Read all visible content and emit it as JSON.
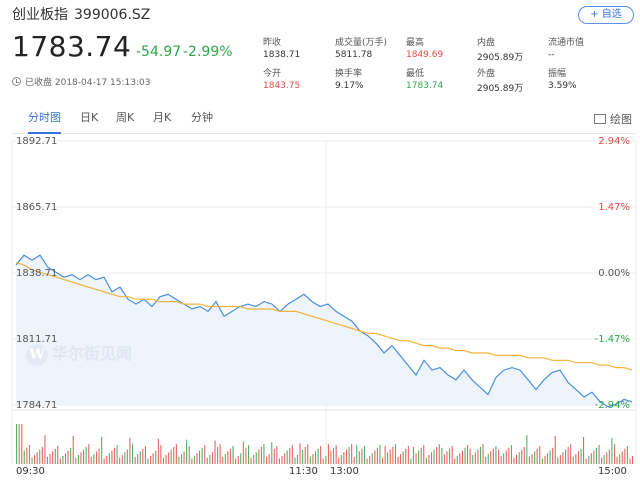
{
  "header": {
    "name": "创业板指",
    "code": "399006.SZ",
    "watch_button": "+ 自选",
    "price": "1783.74",
    "change": "-54.97",
    "change_pct": "-2.99%",
    "closed_status": "已收盘 2018-04-17 15:13:03"
  },
  "stats": [
    {
      "label": "昨收",
      "value": "1838.71",
      "tone": ""
    },
    {
      "label": "成交量(万手)",
      "value": "5811.78",
      "tone": ""
    },
    {
      "label": "最高",
      "value": "1849.69",
      "tone": "red"
    },
    {
      "label": "内盘",
      "value": "2905.89万",
      "tone": ""
    },
    {
      "label": "流通市值",
      "value": "--",
      "tone": ""
    },
    {
      "label": "今开",
      "value": "1843.75",
      "tone": "red"
    },
    {
      "label": "换手率",
      "value": "9.17%",
      "tone": ""
    },
    {
      "label": "最低",
      "value": "1783.74",
      "tone": "green"
    },
    {
      "label": "外盘",
      "value": "2905.89万",
      "tone": ""
    },
    {
      "label": "振幅",
      "value": "3.59%",
      "tone": ""
    }
  ],
  "tabs": [
    {
      "label": "分时图",
      "active": true
    },
    {
      "label": "日K",
      "active": false
    },
    {
      "label": "周K",
      "active": false
    },
    {
      "label": "月K",
      "active": false
    },
    {
      "label": "分钟",
      "active": false
    }
  ],
  "draw_button": "绘图",
  "watermark": "华尔街见闻",
  "colors": {
    "up": "#e24a4a",
    "down": "#2ba84a",
    "accent": "#3b74d9",
    "price_line": "#4a8fe0",
    "avg_line": "#f0b43c"
  },
  "chart_data": {
    "type": "line",
    "title": "",
    "prev_close": 1838.71,
    "y_ticks_left": [
      "1892.71",
      "1865.71",
      "1838.71",
      "1811.71",
      "1784.71"
    ],
    "y_ticks_right": [
      "2.94%",
      "1.47%",
      "0.00%",
      "-1.47%",
      "-2.94%"
    ],
    "x_ticks": [
      "09:30",
      "11:30",
      "13:00",
      "15:00"
    ],
    "ylim": [
      1784.71,
      1892.71
    ],
    "series": [
      {
        "name": "",
        "values": [
          1842,
          1846,
          1844,
          1846,
          1841,
          1839,
          1837,
          1838,
          1836,
          1838,
          1836,
          1837,
          1831,
          1833,
          1828,
          1826,
          1828,
          1825,
          1829,
          1830,
          1828,
          1826,
          1824,
          1825,
          1823,
          1827,
          1821,
          1823,
          1825,
          1826,
          1825,
          1827,
          1826,
          1823,
          1826,
          1828,
          1830,
          1827,
          1825,
          1826,
          1823,
          1821,
          1819,
          1815,
          1813,
          1810,
          1806,
          1809,
          1805,
          1801,
          1797,
          1803,
          1799,
          1800,
          1797,
          1795,
          1799,
          1795,
          1792,
          1789,
          1796,
          1799,
          1800,
          1799,
          1795,
          1791,
          1795,
          1798,
          1799,
          1794,
          1791,
          1788,
          1790,
          1786,
          1784,
          1785,
          1787,
          1786
        ]
      },
      {
        "name": "",
        "values": [
          1843,
          1842,
          1840,
          1839,
          1838,
          1837,
          1836,
          1835,
          1834,
          1833,
          1832,
          1831,
          1830,
          1829,
          1829,
          1828,
          1828,
          1828,
          1827,
          1827,
          1827,
          1826,
          1826,
          1826,
          1825,
          1825,
          1825,
          1825,
          1825,
          1824,
          1824,
          1824,
          1824,
          1823,
          1823,
          1823,
          1822,
          1821,
          1820,
          1819,
          1818,
          1817,
          1816,
          1815,
          1814,
          1814,
          1813,
          1812,
          1811,
          1811,
          1810,
          1809,
          1809,
          1808,
          1808,
          1807,
          1807,
          1806,
          1806,
          1806,
          1805,
          1805,
          1805,
          1805,
          1804,
          1804,
          1804,
          1803,
          1803,
          1803,
          1802,
          1802,
          1802,
          1801,
          1801,
          1800,
          1800,
          1799
        ]
      }
    ]
  }
}
